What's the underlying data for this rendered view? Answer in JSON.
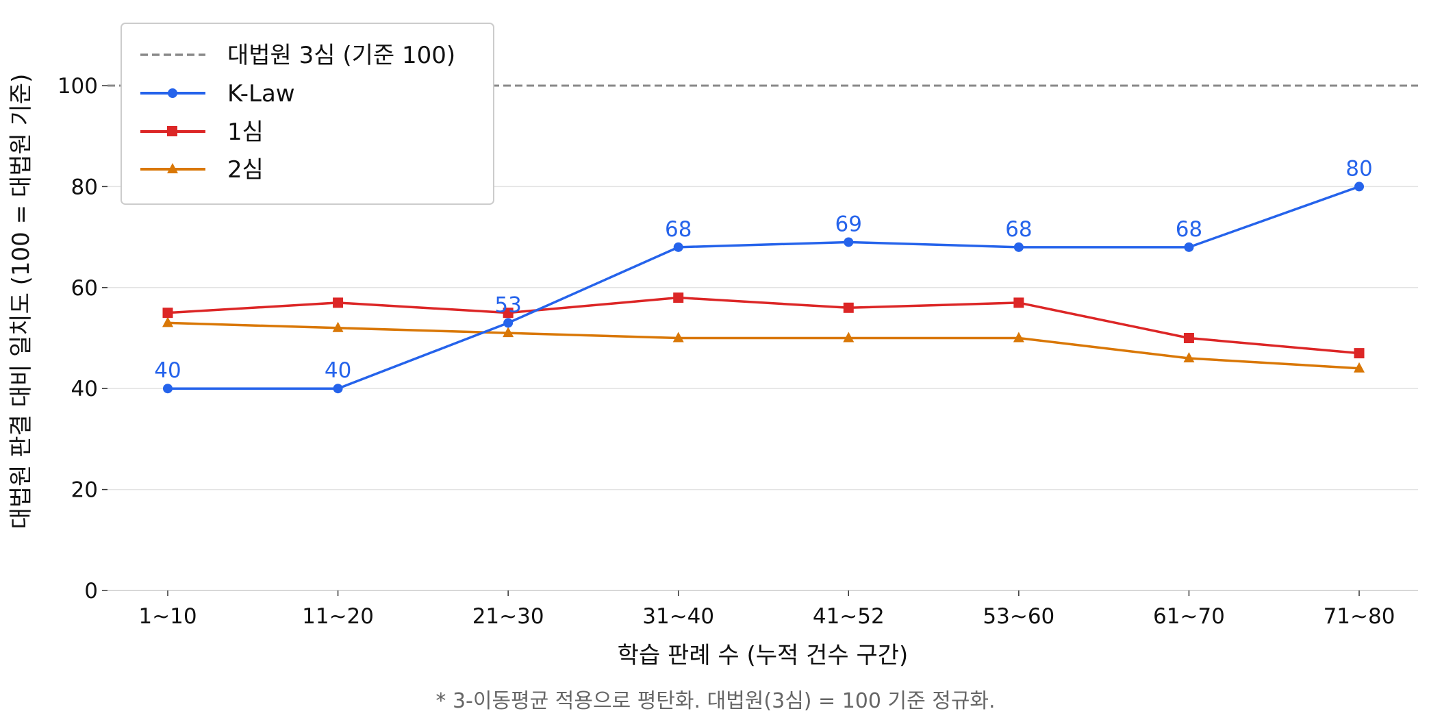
{
  "chart_data": {
    "type": "line",
    "title": "",
    "xlabel": "학습 판례 수 (누적 건수 구간)",
    "ylabel": "대법원 판결 대비 일치도 (100 = 대법원 기준)",
    "note": "* 3-이동평균 적용으로 평탄화. 대법원(3심) = 100 기준 정규화.",
    "categories": [
      "1~10",
      "11~20",
      "21~30",
      "31~40",
      "41~52",
      "53~60",
      "61~70",
      "71~80"
    ],
    "ylim": [
      0,
      112
    ],
    "yticks": [
      0,
      20,
      40,
      60,
      80,
      100
    ],
    "grid": "horizontal",
    "legend_position": "top-left",
    "reference": {
      "name": "대법원 3심 (기준 100)",
      "value": 100,
      "color": "#888888"
    },
    "series": [
      {
        "name": "K-Law",
        "color": "#2563eb",
        "marker": "circle",
        "labels": true,
        "values": [
          40,
          40,
          53,
          68,
          69,
          68,
          68,
          80
        ]
      },
      {
        "name": "1심",
        "color": "#dc2626",
        "marker": "square",
        "labels": false,
        "values": [
          55,
          57,
          55,
          58,
          56,
          57,
          50,
          47
        ]
      },
      {
        "name": "2심",
        "color": "#d97706",
        "marker": "triangle",
        "labels": false,
        "values": [
          53,
          52,
          51,
          50,
          50,
          50,
          46,
          44
        ]
      }
    ]
  }
}
